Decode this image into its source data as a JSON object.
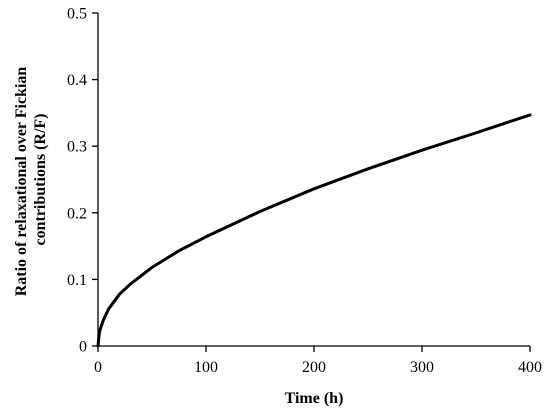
{
  "chart_data": {
    "type": "line",
    "title": "",
    "xlabel": "Time (h)",
    "ylabel_lines": [
      "Ratio of relaxational over Fickian",
      "contributions (R/F)"
    ],
    "xlim": [
      0,
      400
    ],
    "ylim": [
      0,
      0.5
    ],
    "x_ticks": [
      0,
      100,
      200,
      300,
      400
    ],
    "y_ticks": [
      "0",
      "0.1",
      "0.2",
      "0.3",
      "0.4",
      "0.5"
    ],
    "grid": false,
    "legend": "none",
    "line_color": "#000000",
    "series": [
      {
        "x": [
          0,
          1,
          2,
          5,
          10,
          20,
          30,
          50,
          75,
          100,
          150,
          200,
          250,
          300,
          350,
          400
        ],
        "y": [
          0,
          0.017,
          0.025,
          0.039,
          0.056,
          0.078,
          0.093,
          0.118,
          0.143,
          0.164,
          0.202,
          0.236,
          0.266,
          0.294,
          0.32,
          0.347
        ]
      }
    ]
  }
}
